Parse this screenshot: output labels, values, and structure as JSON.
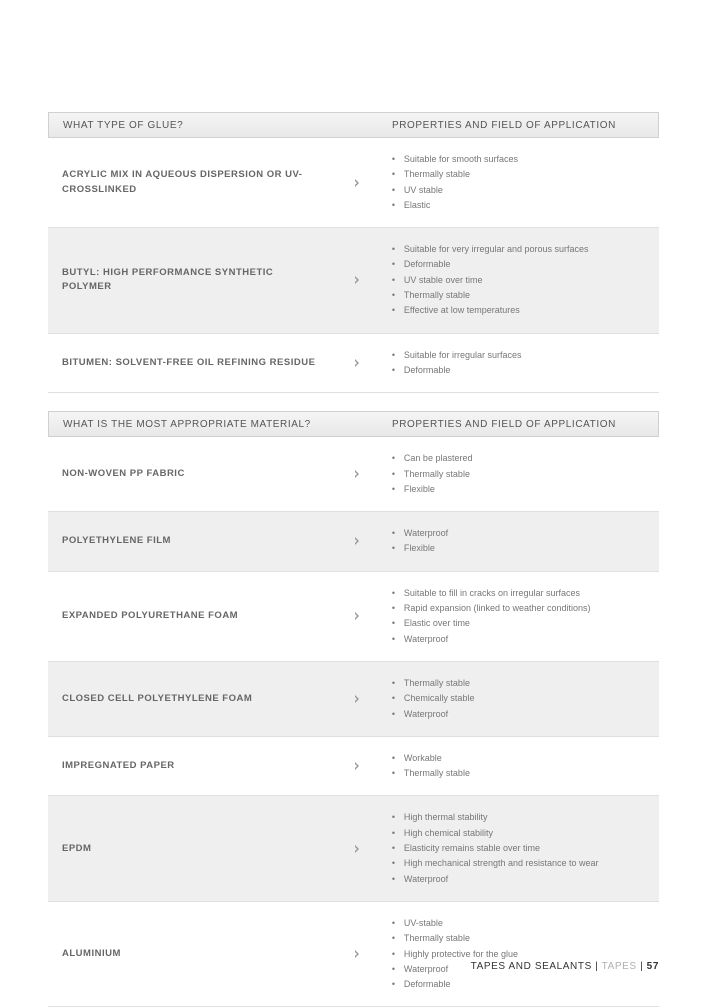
{
  "colors": {
    "page_bg": "#ffffff",
    "header_grad_top": "#f5f5f5",
    "header_grad_bottom": "#e8e8e8",
    "header_border": "#d0d0d0",
    "row_border": "#e0e0e0",
    "alt_row_bg": "#efefef",
    "text_header": "#555555",
    "text_label": "#666666",
    "text_prop": "#777777",
    "arrow_fill": "#999999",
    "footer_text": "#333333",
    "footer_tapes": "#b0b0b0"
  },
  "typography": {
    "header_fontsize": 10,
    "label_fontsize": 9.5,
    "prop_fontsize": 9,
    "footer_fontsize": 10,
    "letter_spacing": 0.6
  },
  "sections": [
    {
      "header_left": "WHAT TYPE OF GLUE?",
      "header_right": "PROPERTIES AND FIELD OF APPLICATION",
      "rows": [
        {
          "label": "ACRYLIC MIX IN AQUEOUS DISPERSION OR UV-CROSSLINKED",
          "alt": false,
          "props": [
            "Suitable for smooth surfaces",
            "Thermally stable",
            "UV stable",
            "Elastic"
          ]
        },
        {
          "label": "BUTYL: HIGH PERFORMANCE SYNTHETIC POLYMER",
          "alt": true,
          "props": [
            "Suitable for very irregular and porous surfaces",
            "Deformable",
            "UV stable over time",
            "Thermally stable",
            "Effective at low temperatures"
          ]
        },
        {
          "label": "BITUMEN: SOLVENT-FREE OIL REFINING RESIDUE",
          "alt": false,
          "props": [
            "Suitable for irregular surfaces",
            "Deformable"
          ]
        }
      ]
    },
    {
      "header_left": "WHAT IS THE MOST APPROPRIATE MATERIAL?",
      "header_right": "PROPERTIES AND FIELD OF APPLICATION",
      "rows": [
        {
          "label": "NON-WOVEN PP FABRIC",
          "alt": false,
          "props": [
            "Can be plastered",
            "Thermally stable",
            "Flexible"
          ]
        },
        {
          "label": "POLYETHYLENE FILM",
          "alt": true,
          "props": [
            "Waterproof",
            "Flexible"
          ]
        },
        {
          "label": "EXPANDED POLYURETHANE FOAM",
          "alt": false,
          "props": [
            "Suitable to fill in cracks on irregular surfaces",
            "Rapid expansion (linked to weather conditions)",
            "Elastic over time",
            "Waterproof"
          ]
        },
        {
          "label": "CLOSED CELL POLYETHYLENE FOAM",
          "alt": true,
          "props": [
            "Thermally stable",
            "Chemically stable",
            "Waterproof"
          ]
        },
        {
          "label": "IMPREGNATED PAPER",
          "alt": false,
          "props": [
            "Workable",
            "Thermally stable"
          ]
        },
        {
          "label": "EPDM",
          "alt": true,
          "props": [
            "High thermal stability",
            "High chemical stability",
            "Elasticity remains stable over time",
            "High mechanical strength and resistance to wear",
            "Waterproof"
          ]
        },
        {
          "label": "ALUMINIUM",
          "alt": false,
          "props": [
            "UV-stable",
            "Thermally stable",
            "Highly protective for the glue",
            "Waterproof",
            "Deformable"
          ]
        }
      ]
    }
  ],
  "footer": {
    "category": "TAPES AND SEALANTS",
    "sep": "  |  ",
    "subcategory": "TAPES",
    "page": "57"
  }
}
